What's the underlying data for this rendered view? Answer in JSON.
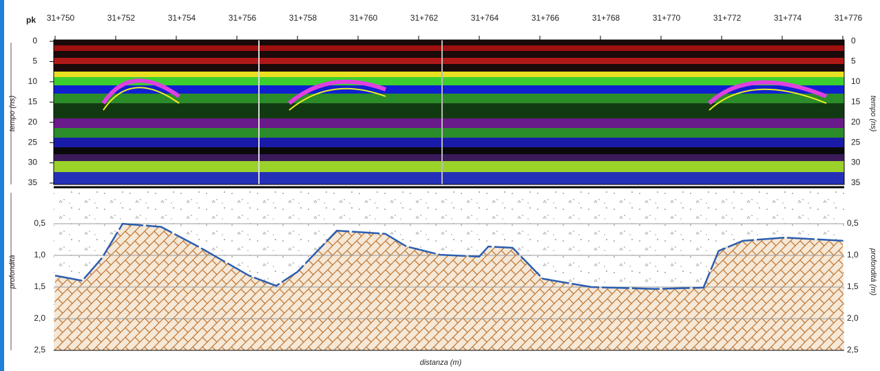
{
  "pk_label": "pk",
  "pk_ticks": [
    {
      "value": 31750,
      "label": "31+750"
    },
    {
      "value": 31752,
      "label": "31+752"
    },
    {
      "value": 31754,
      "label": "31+754"
    },
    {
      "value": 31756,
      "label": "31+756"
    },
    {
      "value": 31758,
      "label": "31+758"
    },
    {
      "value": 31760,
      "label": "31+760"
    },
    {
      "value": 31762,
      "label": "31+762"
    },
    {
      "value": 31764,
      "label": "31+764"
    },
    {
      "value": 31766,
      "label": "31+766"
    },
    {
      "value": 31768,
      "label": "31+768"
    },
    {
      "value": 31770,
      "label": "31+770"
    },
    {
      "value": 31772,
      "label": "31+772"
    },
    {
      "value": 31774,
      "label": "31+774"
    },
    {
      "value": 31776,
      "label": "31+776"
    }
  ],
  "xlim": [
    31750,
    31776
  ],
  "time_axis": {
    "label_left": "tempo (ns)",
    "label_right": "tempo (ns)",
    "lim": [
      0,
      35
    ],
    "ticks": [
      0,
      5,
      10,
      15,
      20,
      25,
      30,
      35
    ]
  },
  "depth_axis": {
    "label_left": "profondità",
    "label_right": "profondità (m)",
    "lim": [
      0,
      2.5
    ],
    "ticks": [
      {
        "value": 0.5,
        "label": "0,5"
      },
      {
        "value": 1.0,
        "label": "1,0"
      },
      {
        "value": 1.5,
        "label": "1,5"
      },
      {
        "value": 2.0,
        "label": "2,0"
      },
      {
        "value": 2.5,
        "label": "2,5"
      }
    ]
  },
  "x_label": "distanza (m)",
  "interface": {
    "color": "#2a5db0",
    "x": [
      31750,
      31750.9,
      31751.55,
      31752.23,
      31753.5,
      31754.8,
      31756.4,
      31757.3,
      31758.0,
      31759.3,
      31760.9,
      31761.6,
      31762.7,
      31764.0,
      31764.3,
      31765.1,
      31766.1,
      31767.7,
      31769.8,
      31771.4,
      31771.9,
      31772.7,
      31774.1,
      31776
    ],
    "depth": [
      1.32,
      1.4,
      1.04,
      0.5,
      0.55,
      0.88,
      1.32,
      1.48,
      1.26,
      0.61,
      0.66,
      0.86,
      0.99,
      1.02,
      0.86,
      0.88,
      1.37,
      1.5,
      1.53,
      1.51,
      0.93,
      0.77,
      0.72,
      0.77
    ]
  }
}
